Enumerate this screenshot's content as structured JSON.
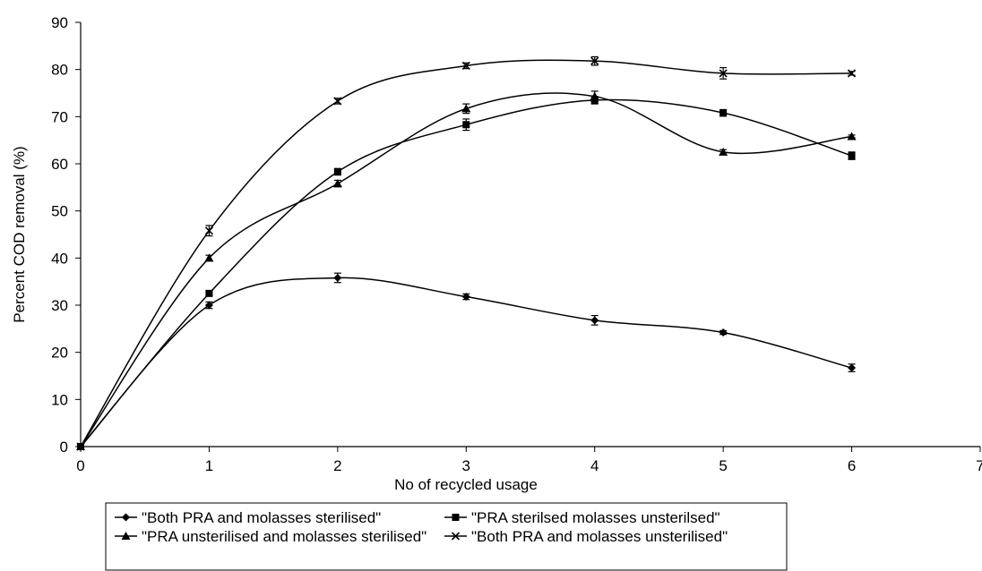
{
  "chart_data": {
    "type": "line",
    "title": "",
    "xlabel": "No of recycled usage",
    "ylabel": "Percent COD removal (%)",
    "xlim": [
      0,
      7
    ],
    "ylim": [
      0,
      90
    ],
    "x_ticks": [
      "0",
      "1",
      "2",
      "3",
      "4",
      "5",
      "6",
      "7"
    ],
    "y_ticks": [
      "0",
      "10",
      "20",
      "30",
      "40",
      "50",
      "60",
      "70",
      "80",
      "90"
    ],
    "grid": false,
    "smooth": true,
    "error_bars": true,
    "legend_position": "bottom",
    "series": [
      {
        "name": "\"Both PRA and molasses sterilised\"",
        "marker": "diamond",
        "color": "#000000",
        "x": [
          0,
          1,
          2,
          3,
          4,
          5,
          6
        ],
        "y": [
          0,
          30,
          35.8,
          31.8,
          26.8,
          24.2,
          16.7
        ],
        "err": [
          0,
          0.7,
          1.0,
          0.6,
          1.0,
          0.4,
          0.8
        ]
      },
      {
        "name": "\"PRA sterilsed molasses unsterilsed\"",
        "marker": "square",
        "color": "#000000",
        "x": [
          0,
          1,
          2,
          3,
          4,
          5,
          6
        ],
        "y": [
          0,
          32.5,
          58.3,
          68.3,
          73.5,
          70.8,
          61.7
        ],
        "err": [
          0,
          0.5,
          0.7,
          1.2,
          0.8,
          0.7,
          0.8
        ]
      },
      {
        "name": "\"PRA unsterilised and molasses sterilised\"",
        "marker": "triangle",
        "color": "#000000",
        "x": [
          0,
          1,
          2,
          3,
          4,
          5,
          6
        ],
        "y": [
          0,
          40,
          55.8,
          71.7,
          74.3,
          62.5,
          65.8
        ],
        "err": [
          0,
          0.6,
          0.7,
          1.0,
          1.1,
          0.5,
          0.3
        ]
      },
      {
        "name": "\"Both PRA and molasses unsterilised\"",
        "marker": "x",
        "color": "#000000",
        "x": [
          0,
          1,
          2,
          3,
          4,
          5,
          6
        ],
        "y": [
          0,
          45.8,
          73.3,
          80.8,
          81.8,
          79.2,
          79.2
        ],
        "err": [
          0,
          1.1,
          0.6,
          0.6,
          0.9,
          1.2,
          0.4
        ]
      }
    ]
  }
}
